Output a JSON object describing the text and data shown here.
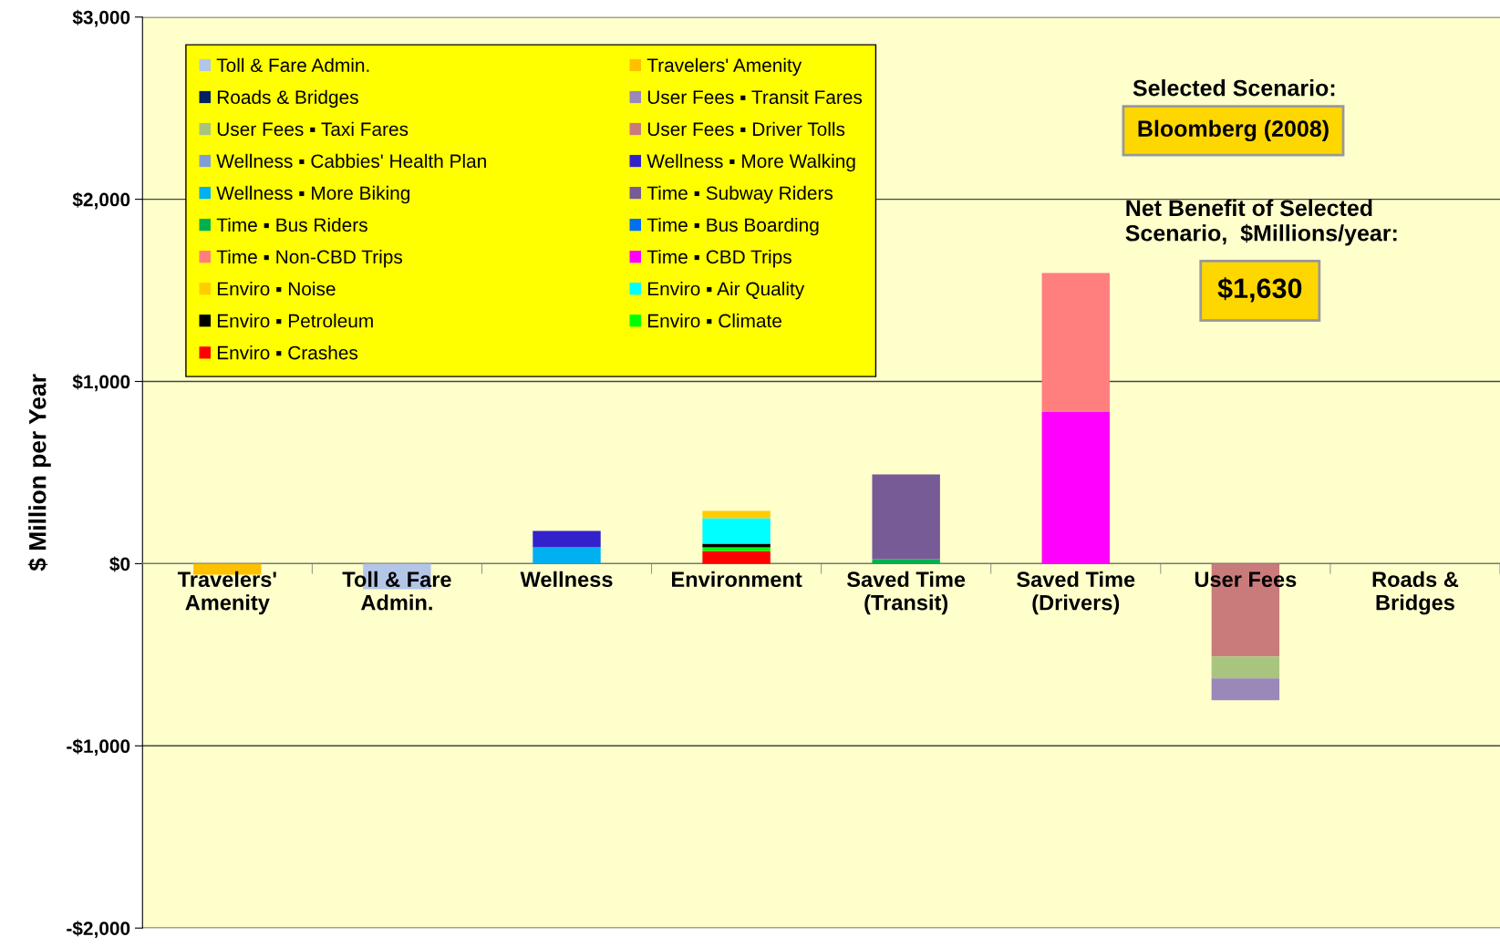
{
  "chart_data": {
    "type": "bar",
    "stacked": true,
    "ylabel": "$ Million per Year",
    "categories": [
      "Travelers'\nAmenity",
      "Toll & Fare\nAdmin.",
      "Wellness",
      "Environment",
      "Saved Time\n(Transit)",
      "Saved Time\n(Drivers)",
      "User Fees",
      "Roads &\nBridges"
    ],
    "series": [
      {
        "name": "Enviro ▪ Crashes",
        "color": "#ff0000",
        "values": [
          null,
          null,
          null,
          70,
          null,
          null,
          null,
          null
        ]
      },
      {
        "name": "Enviro ▪ Climate",
        "color": "#00ff00",
        "values": [
          null,
          null,
          null,
          20,
          null,
          null,
          null,
          null
        ]
      },
      {
        "name": "Enviro ▪ Petroleum",
        "color": "#000000",
        "values": [
          null,
          null,
          null,
          20,
          null,
          null,
          null,
          null
        ]
      },
      {
        "name": "Enviro ▪ Air Quality",
        "color": "#00ffff",
        "values": [
          null,
          null,
          null,
          140,
          null,
          null,
          null,
          null
        ]
      },
      {
        "name": "Enviro ▪ Noise",
        "color": "#ffcc00",
        "values": [
          null,
          null,
          null,
          40,
          null,
          null,
          null,
          null
        ]
      },
      {
        "name": "Time ▪ CBD Trips",
        "color": "#ff00ff",
        "values": [
          null,
          null,
          null,
          null,
          null,
          835,
          null,
          null
        ]
      },
      {
        "name": "Time ▪ Non-CBD Trips",
        "color": "#ff7f7f",
        "values": [
          null,
          null,
          null,
          null,
          null,
          760,
          null,
          null
        ]
      },
      {
        "name": "Time ▪ Bus Boarding",
        "color": "#0070f0",
        "values": [
          null,
          null,
          null,
          null,
          null,
          null,
          null,
          null
        ]
      },
      {
        "name": "Time ▪ Bus Riders",
        "color": "#00b050",
        "values": [
          null,
          null,
          null,
          null,
          25,
          null,
          null,
          null
        ]
      },
      {
        "name": "Time ▪ Subway Riders",
        "color": "#765b96",
        "values": [
          null,
          null,
          null,
          null,
          465,
          null,
          null,
          null
        ]
      },
      {
        "name": "Wellness ▪ More Biking",
        "color": "#00b0f0",
        "values": [
          null,
          null,
          90,
          null,
          null,
          null,
          null,
          null
        ]
      },
      {
        "name": "Wellness ▪ More Walking",
        "color": "#3322cc",
        "values": [
          null,
          null,
          90,
          null,
          null,
          null,
          null,
          null
        ]
      },
      {
        "name": "Wellness ▪ Cabbies' Health Plan",
        "color": "#7f9fd4",
        "values": [
          null,
          null,
          null,
          null,
          null,
          null,
          null,
          null
        ]
      },
      {
        "name": "User Fees ▪ Driver Tolls",
        "color": "#c97b7b",
        "values": [
          null,
          null,
          null,
          null,
          null,
          null,
          -510,
          null
        ]
      },
      {
        "name": "User Fees ▪ Taxi Fares",
        "color": "#a9c47f",
        "values": [
          null,
          null,
          null,
          null,
          null,
          null,
          -120,
          null
        ]
      },
      {
        "name": "User Fees ▪ Transit Fares",
        "color": "#9a88b8",
        "values": [
          null,
          null,
          null,
          null,
          null,
          null,
          -120,
          null
        ]
      },
      {
        "name": "Roads & Bridges",
        "color": "#002060",
        "values": [
          null,
          null,
          null,
          null,
          null,
          null,
          null,
          null
        ]
      },
      {
        "name": "Travelers' Amenity",
        "color": "#ffc000",
        "values": [
          -60,
          null,
          null,
          null,
          null,
          null,
          null,
          null
        ]
      },
      {
        "name": "Toll & Fare Admin.",
        "color": "#b4c6e7",
        "values": [
          null,
          -140,
          null,
          null,
          null,
          null,
          null,
          null
        ]
      }
    ],
    "ylim": [
      -2000,
      3000
    ],
    "yticks": [
      {
        "value": -2000,
        "label": "-$2,000"
      },
      {
        "value": -1000,
        "label": "-$1,000"
      },
      {
        "value": 0,
        "label": "$0"
      },
      {
        "value": 1000,
        "label": "$1,000"
      },
      {
        "value": 2000,
        "label": "$2,000"
      },
      {
        "value": 3000,
        "label": "$3,000"
      }
    ],
    "grid": "y",
    "legend": "top left",
    "annotations": [
      "Selected Scenario:",
      "Bloomberg (2008)",
      "Net Benefit of Selected\nScenario,  $Millions/year:",
      "$1,630"
    ]
  }
}
